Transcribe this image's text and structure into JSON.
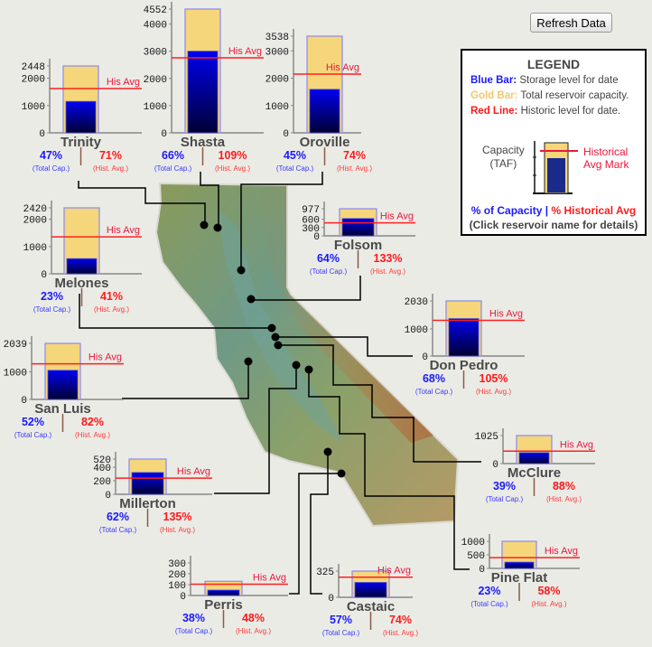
{
  "toolbar": {
    "refresh_label": "Refresh Data"
  },
  "legend": {
    "title": "LEGEND",
    "blue_key": "Blue Bar:",
    "blue_text": "Storage level for date",
    "gold_key": "Gold Bar:",
    "gold_text": "Total reservoir capacity.",
    "red_key": "Red Line:",
    "red_text": "Historic level for date.",
    "capacity_label_1": "Capacity",
    "capacity_label_2": "(TAF)",
    "hist_label_1": "Historical",
    "hist_label_2": "Avg Mark",
    "pct_capacity": "% of Capacity",
    "separator": "|",
    "pct_hist": "% Historical Avg",
    "click_note": "(Click reservoir name for details)"
  },
  "labels": {
    "his_avg": "His Avg",
    "total_cap": "(Total Cap.)",
    "hist_avg": "(Hist. Avg.)"
  },
  "colors": {
    "storage": "#0000e6",
    "capacity": "#f5d67a",
    "historic": "#ff2020",
    "pct_capacity": "#1a1aff",
    "pct_hist": "#ff1a1a"
  },
  "reservoirs": [
    {
      "name": "Trinity",
      "capacity": 2448,
      "storage": 1151,
      "hist_avg": 1621,
      "ticks": [
        0,
        1000,
        2000,
        2448
      ],
      "pct_capacity": "47%",
      "pct_hist": "71%"
    },
    {
      "name": "Shasta",
      "capacity": 4552,
      "storage": 3004,
      "hist_avg": 2756,
      "ticks": [
        0,
        1000,
        2000,
        3000,
        4000,
        4552
      ],
      "pct_capacity": "66%",
      "pct_hist": "109%"
    },
    {
      "name": "Oroville",
      "capacity": 3538,
      "storage": 1592,
      "hist_avg": 2151,
      "ticks": [
        0,
        1000,
        2000,
        3000,
        3538
      ],
      "pct_capacity": "45%",
      "pct_hist": "74%"
    },
    {
      "name": "Melones",
      "capacity": 2420,
      "storage": 557,
      "hist_avg": 1357,
      "ticks": [
        0,
        1000,
        2000,
        2420
      ],
      "pct_capacity": "23%",
      "pct_hist": "41%"
    },
    {
      "name": "Folsom",
      "capacity": 977,
      "storage": 625,
      "hist_avg": 470,
      "ticks": [
        0,
        300,
        600,
        977
      ],
      "pct_capacity": "64%",
      "pct_hist": "133%"
    },
    {
      "name": "Don Pedro",
      "capacity": 2030,
      "storage": 1380,
      "hist_avg": 1315,
      "ticks": [
        0,
        1000,
        2030
      ],
      "pct_capacity": "68%",
      "pct_hist": "105%"
    },
    {
      "name": "San Luis",
      "capacity": 2039,
      "storage": 1060,
      "hist_avg": 1293,
      "ticks": [
        0,
        1000,
        2039
      ],
      "pct_capacity": "52%",
      "pct_hist": "82%"
    },
    {
      "name": "McClure",
      "capacity": 1025,
      "storage": 400,
      "hist_avg": 454,
      "ticks": [
        0,
        1025
      ],
      "pct_capacity": "39%",
      "pct_hist": "88%"
    },
    {
      "name": "Millerton",
      "capacity": 520,
      "storage": 322,
      "hist_avg": 239,
      "ticks": [
        0,
        200,
        400,
        520
      ],
      "pct_capacity": "62%",
      "pct_hist": "135%"
    },
    {
      "name": "Pine Flat",
      "capacity": 1000,
      "storage": 230,
      "hist_avg": 397,
      "ticks": [
        0,
        500,
        1000
      ],
      "pct_capacity": "23%",
      "pct_hist": "58%"
    },
    {
      "name": "Perris",
      "capacity": 131,
      "storage": 50,
      "hist_avg": 104,
      "ticks": [
        0,
        100,
        200,
        300
      ],
      "pct_capacity": "38%",
      "pct_hist": "48%"
    },
    {
      "name": "Castaic",
      "capacity": 325,
      "storage": 185,
      "hist_avg": 250,
      "ticks": [
        0,
        325
      ],
      "pct_capacity": "57%",
      "pct_hist": "74%"
    }
  ]
}
